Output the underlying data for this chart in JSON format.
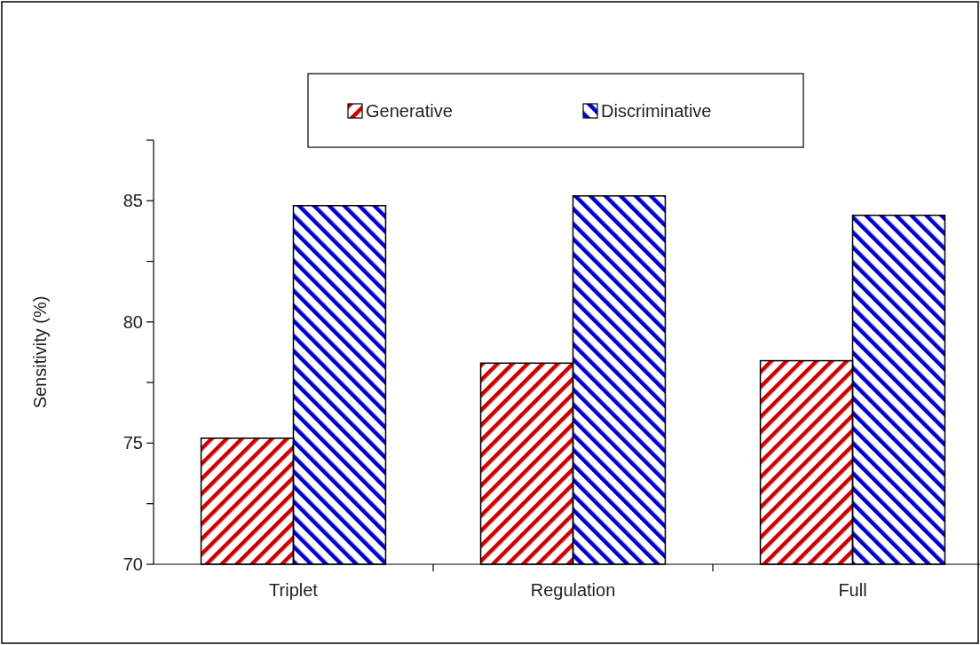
{
  "chart_data": {
    "type": "bar",
    "ylabel": "Sensitivity (%)",
    "categories": [
      "Triplet",
      "Regulation",
      "Full"
    ],
    "series": [
      {
        "name": "Generative",
        "color": "#cc0000",
        "values": [
          75.2,
          78.3,
          78.4
        ]
      },
      {
        "name": "Discriminative",
        "color": "#0000cc",
        "values": [
          84.8,
          85.2,
          84.4
        ]
      }
    ],
    "ylim": [
      70,
      87.5
    ],
    "yticks": [
      70,
      {
        "value": 72.5,
        "label": null
      },
      75,
      {
        "value": 77.5,
        "label": null
      },
      80,
      {
        "value": 82.5,
        "label": null
      },
      85,
      {
        "value": 87.5,
        "label": null
      }
    ],
    "grid": false,
    "legend": "top"
  }
}
